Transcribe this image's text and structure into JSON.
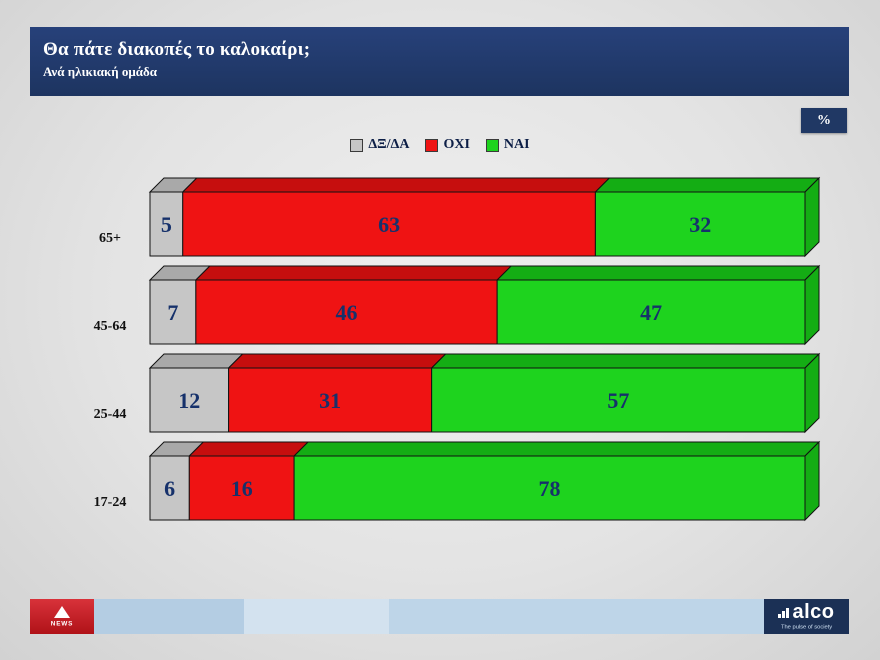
{
  "header": {
    "title": "Θα πάτε διακοπές το καλοκαίρι;",
    "subtitle": "Ανά ηλικιακή ομάδα"
  },
  "percent_badge": "%",
  "chart_data": {
    "type": "bar",
    "orientation": "horizontal",
    "stacked": true,
    "unit": "%",
    "title": "Θα πάτε διακοπές το καλοκαίρι;",
    "subtitle": "Ανά ηλικιακή ομάδα",
    "xlim": [
      0,
      100
    ],
    "legend_position": "top",
    "grid": false,
    "categories": [
      "65+",
      "45-64",
      "25-44",
      "17-24"
    ],
    "series": [
      {
        "name": "ΔΞ/ΔΑ",
        "color": "#c6c6c6",
        "top_color": "#a9a9a9",
        "values": [
          5,
          7,
          12,
          6
        ]
      },
      {
        "name": "ΟΧΙ",
        "color": "#ef1313",
        "top_color": "#c60e0e",
        "values": [
          63,
          46,
          31,
          16
        ]
      },
      {
        "name": "ΝΑΙ",
        "color": "#1ed31e",
        "top_color": "#14ad14",
        "values": [
          32,
          47,
          57,
          78
        ]
      }
    ],
    "value_label_color": "#16316b",
    "category_label_color": "#111111"
  },
  "footer": {
    "news_label": "NEWS",
    "alco_name": "alco",
    "alco_tagline": "The pulse of society"
  }
}
